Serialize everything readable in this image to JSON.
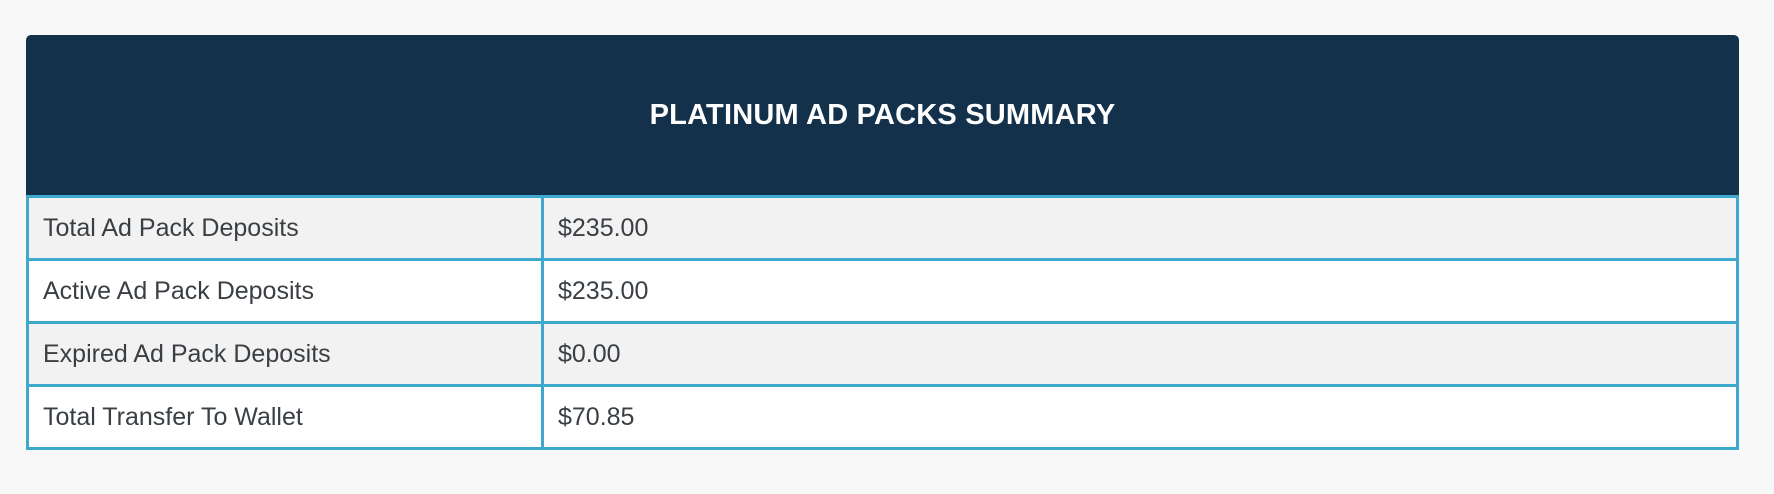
{
  "header": {
    "title": "PLATINUM AD PACKS SUMMARY"
  },
  "table": {
    "rows": [
      [
        "Total Ad Pack Deposits",
        "$235.00"
      ],
      [
        "Active Ad Pack Deposits",
        "$235.00"
      ],
      [
        "Expired Ad Pack Deposits",
        "$0.00"
      ],
      [
        "Total Transfer To Wallet",
        "$70.85"
      ]
    ]
  }
}
